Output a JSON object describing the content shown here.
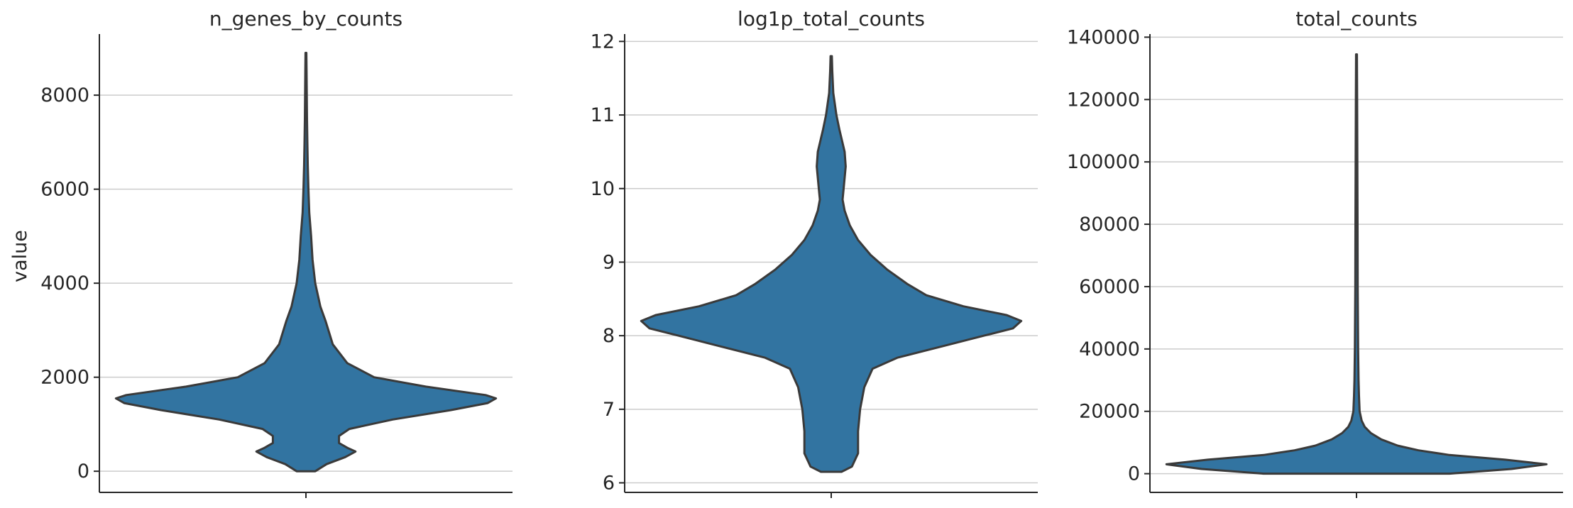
{
  "chart_data": [
    {
      "type": "violin",
      "title": "n_genes_by_counts",
      "ylabel": "value",
      "ylim": [
        -450,
        9300
      ],
      "yticks": [
        0,
        2000,
        4000,
        6000,
        8000
      ],
      "color": "#3274a1",
      "edge_color": "#3a3a3a",
      "grid": true,
      "profile": [
        [
          0,
          0.045
        ],
        [
          150,
          0.1
        ],
        [
          300,
          0.19
        ],
        [
          420,
          0.24
        ],
        [
          500,
          0.2
        ],
        [
          600,
          0.16
        ],
        [
          750,
          0.16
        ],
        [
          900,
          0.21
        ],
        [
          1100,
          0.42
        ],
        [
          1300,
          0.7
        ],
        [
          1450,
          0.88
        ],
        [
          1550,
          0.92
        ],
        [
          1620,
          0.87
        ],
        [
          1800,
          0.58
        ],
        [
          2000,
          0.33
        ],
        [
          2300,
          0.2
        ],
        [
          2700,
          0.13
        ],
        [
          3200,
          0.095
        ],
        [
          3500,
          0.07
        ],
        [
          4000,
          0.045
        ],
        [
          4500,
          0.032
        ],
        [
          5000,
          0.025
        ],
        [
          5500,
          0.016
        ],
        [
          6000,
          0.012
        ],
        [
          6500,
          0.009
        ],
        [
          7000,
          0.007
        ],
        [
          7500,
          0.005
        ],
        [
          8000,
          0.004
        ],
        [
          8500,
          0.003
        ],
        [
          8900,
          0.002
        ]
      ]
    },
    {
      "type": "violin",
      "title": "log1p_total_counts",
      "ylabel": "",
      "ylim": [
        5.87,
        12.1
      ],
      "yticks": [
        6,
        7,
        8,
        9,
        10,
        11,
        12
      ],
      "color": "#3274a1",
      "edge_color": "#3a3a3a",
      "grid": true,
      "profile": [
        [
          6.15,
          0.05
        ],
        [
          6.22,
          0.1
        ],
        [
          6.4,
          0.13
        ],
        [
          6.7,
          0.13
        ],
        [
          7.0,
          0.14
        ],
        [
          7.3,
          0.16
        ],
        [
          7.55,
          0.2
        ],
        [
          7.7,
          0.32
        ],
        [
          7.85,
          0.53
        ],
        [
          8.0,
          0.74
        ],
        [
          8.1,
          0.88
        ],
        [
          8.2,
          0.92
        ],
        [
          8.28,
          0.85
        ],
        [
          8.4,
          0.64
        ],
        [
          8.55,
          0.46
        ],
        [
          8.7,
          0.37
        ],
        [
          8.9,
          0.27
        ],
        [
          9.1,
          0.19
        ],
        [
          9.3,
          0.13
        ],
        [
          9.5,
          0.09
        ],
        [
          9.7,
          0.065
        ],
        [
          9.85,
          0.055
        ],
        [
          10.0,
          0.06
        ],
        [
          10.3,
          0.07
        ],
        [
          10.5,
          0.065
        ],
        [
          10.8,
          0.04
        ],
        [
          11.0,
          0.025
        ],
        [
          11.3,
          0.01
        ],
        [
          11.6,
          0.005
        ],
        [
          11.8,
          0.003
        ]
      ]
    },
    {
      "type": "violin",
      "title": "total_counts",
      "ylabel": "",
      "ylim": [
        -6000,
        141000
      ],
      "yticks": [
        0,
        20000,
        40000,
        60000,
        80000,
        100000,
        120000,
        140000
      ],
      "color": "#3274a1",
      "edge_color": "#3a3a3a",
      "grid": true,
      "profile": [
        [
          0,
          0.45
        ],
        [
          1500,
          0.75
        ],
        [
          3000,
          0.92
        ],
        [
          4500,
          0.72
        ],
        [
          6000,
          0.45
        ],
        [
          7500,
          0.3
        ],
        [
          9000,
          0.2
        ],
        [
          11000,
          0.12
        ],
        [
          13000,
          0.07
        ],
        [
          15000,
          0.04
        ],
        [
          17000,
          0.025
        ],
        [
          20000,
          0.015
        ],
        [
          25000,
          0.012
        ],
        [
          30000,
          0.01
        ],
        [
          40000,
          0.008
        ],
        [
          60000,
          0.006
        ],
        [
          80000,
          0.005
        ],
        [
          100000,
          0.004
        ],
        [
          120000,
          0.003
        ],
        [
          134500,
          0.002
        ]
      ]
    }
  ]
}
